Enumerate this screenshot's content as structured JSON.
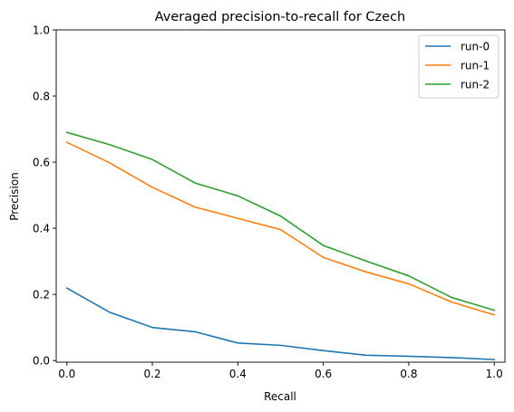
{
  "chart_data": {
    "type": "line",
    "title": "Averaged precision-to-recall for Czech",
    "xlabel": "Recall",
    "ylabel": "Precision",
    "xlim": [
      -0.025,
      1.025
    ],
    "ylim": [
      -0.005,
      1.0
    ],
    "xticks": [
      0.0,
      0.2,
      0.4,
      0.6,
      0.8,
      1.0
    ],
    "xtick_labels": [
      "0.0",
      "0.2",
      "0.4",
      "0.6",
      "0.8",
      "1.0"
    ],
    "yticks": [
      0.0,
      0.2,
      0.4,
      0.6,
      0.8,
      1.0
    ],
    "ytick_labels": [
      "0.0",
      "0.2",
      "0.4",
      "0.6",
      "0.8",
      "1.0"
    ],
    "grid": false,
    "legend_position": "top-right",
    "x": [
      0.0,
      0.1,
      0.2,
      0.3,
      0.4,
      0.5,
      0.6,
      0.7,
      0.8,
      0.9,
      1.0
    ],
    "series": [
      {
        "name": "run-0",
        "color": "#1f77b4",
        "values": [
          0.219,
          0.146,
          0.1,
          0.087,
          0.053,
          0.046,
          0.03,
          0.016,
          0.013,
          0.009,
          0.003
        ]
      },
      {
        "name": "run-1",
        "color": "#ff7f0e",
        "values": [
          0.66,
          0.598,
          0.524,
          0.464,
          0.43,
          0.396,
          0.312,
          0.268,
          0.232,
          0.177,
          0.138
        ]
      },
      {
        "name": "run-2",
        "color": "#2ca02c",
        "values": [
          0.69,
          0.653,
          0.608,
          0.537,
          0.498,
          0.437,
          0.348,
          0.301,
          0.256,
          0.191,
          0.152
        ]
      }
    ]
  }
}
